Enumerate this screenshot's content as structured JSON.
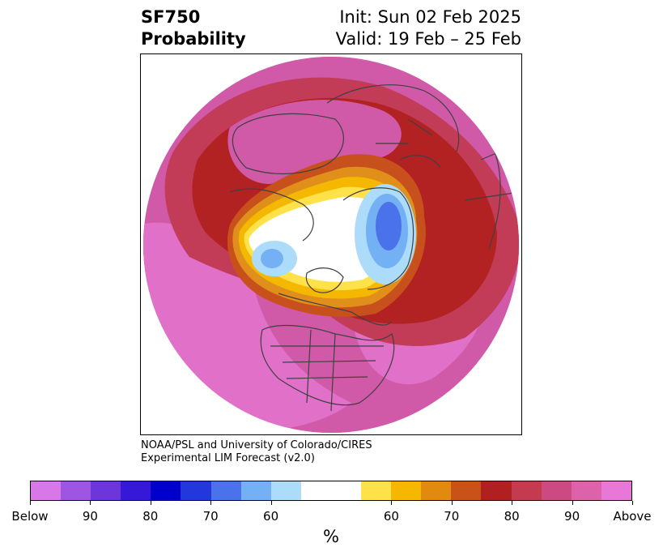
{
  "title": {
    "left_line1": "SF750",
    "left_line2": "Probability",
    "right_line1": "Init: Sun 02 Feb 2025",
    "right_line2": "Valid: 19 Feb – 25 Feb"
  },
  "credit": {
    "line1": "NOAA/PSL and University of Colorado/CIRES",
    "line2": "Experimental LIM Forecast (v2.0)"
  },
  "colorbar": {
    "units": "%",
    "segments": [
      {
        "color": "#d878e8"
      },
      {
        "color": "#9d55e2"
      },
      {
        "color": "#6c36da"
      },
      {
        "color": "#3618d8"
      },
      {
        "color": "#0000cc"
      },
      {
        "color": "#2238dd"
      },
      {
        "color": "#4a72ea"
      },
      {
        "color": "#74b0f4"
      },
      {
        "color": "#addcfb"
      },
      {
        "color": "#ffffff",
        "wide": true
      },
      {
        "color": "#ffe24a"
      },
      {
        "color": "#f5b800"
      },
      {
        "color": "#e08a10"
      },
      {
        "color": "#c85218"
      },
      {
        "color": "#b02020"
      },
      {
        "color": "#c43a4e"
      },
      {
        "color": "#cc4a82"
      },
      {
        "color": "#dc62aa"
      },
      {
        "color": "#e878d8"
      }
    ],
    "ticks": [
      "Below",
      "90",
      "80",
      "70",
      "60",
      "60",
      "70",
      "80",
      "90",
      "Above"
    ]
  },
  "map": {
    "projection": "north-polar-stereographic",
    "colors": {
      "outer_pink": "#e070c8",
      "magenta": "#d05aa8",
      "crimson": "#c23c58",
      "red": "#b22222",
      "rust": "#c8501c",
      "orange": "#e0901a",
      "gold": "#f5b800",
      "yellow": "#ffe24a",
      "white": "#ffffff",
      "light_blue": "#addcfb",
      "blue": "#74b0f4",
      "mid_blue": "#4a72ea",
      "coast": "#404040"
    }
  }
}
